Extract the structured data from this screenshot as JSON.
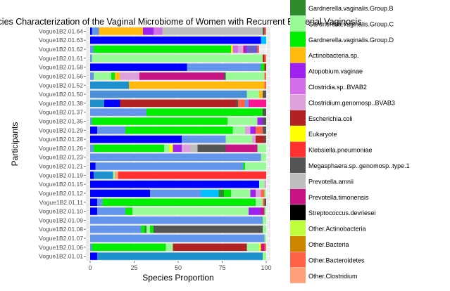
{
  "chart_data": {
    "type": "bar",
    "orientation": "horizontal",
    "stacked": true,
    "title": "cies Characterization of the Vaginal Microbiome of Women with Recurrent Bacterial Vaginosis",
    "xlabel": "Species Proportion",
    "ylabel": "Participants",
    "xlim": [
      0,
      100
    ],
    "xticks": [
      0,
      25,
      50,
      75,
      100
    ],
    "grid": true,
    "legend_position": "right",
    "categories": [
      "Vogue1B2.01.64",
      "Vogue1B2.01.63",
      "Vogue1B2.01.62",
      "Vogue1B2.01.61",
      "Vogue1B2.01.58",
      "Vogue1B2.01.56",
      "Vogue1B2.01.52",
      "Vogue1B2.01.50",
      "Vogue1B2.01.38",
      "Vogue1B2.01.37",
      "Vogue1B2.01.35",
      "Vogue1B2.01.29",
      "Vogue1B2.01.28",
      "Vogue1B2.01.26",
      "Vogue1B2.01.23",
      "Vogue1B2.01.21",
      "Vogue1B2.01.19",
      "Vogue1B2.01.15",
      "Vogue1B2.01.12",
      "Vogue1B2.01.11",
      "Vogue1B2.01.10",
      "Vogue1B2.01.09",
      "Vogue1B2.01.08",
      "Vogue1B2.01.07",
      "Vogue1B2.01.06",
      "Vogue1B2.01.01"
    ],
    "legend": [
      {
        "name": "Gardnerella.vaginalis.Group.B",
        "color": "#2e8b2e"
      },
      {
        "name": "Gardnerella.vaginalis.Group.C",
        "color": "#98fb98"
      },
      {
        "name": "Gardnerella.vaginalis.Group.D",
        "color": "#00ee00"
      },
      {
        "name": "Actinobacteria.sp.",
        "color": "#ffb90f"
      },
      {
        "name": "Atopobium.vaginae",
        "color": "#a020f0"
      },
      {
        "name": "Clostridia.sp..BVAB2",
        "color": "#d16ee8"
      },
      {
        "name": "Clostridium.genomosp..BVAB3",
        "color": "#dda0dd"
      },
      {
        "name": "Escherichia.coli",
        "color": "#b22222"
      },
      {
        "name": "Eukaryote",
        "color": "#ffff00"
      },
      {
        "name": "Klebsiella.pneumoniae",
        "color": "#ff3030"
      },
      {
        "name": "Megasphaera.sp..genomosp..type.1",
        "color": "#555555"
      },
      {
        "name": "Prevotella.amnii",
        "color": "#bebebe"
      },
      {
        "name": "Prevotella.timonensis",
        "color": "#c71585"
      },
      {
        "name": "Streptococcus.devriesei",
        "color": "#000000"
      },
      {
        "name": "Other.Actinobacteria",
        "color": "#c0ff3e"
      },
      {
        "name": "Other.Bacteria",
        "color": "#cd8500"
      },
      {
        "name": "Other.Bacteroidetes",
        "color": "#ff6347"
      },
      {
        "name": "Other.Clostridium",
        "color": "#ffa07a"
      }
    ],
    "rows": [
      {
        "label": "Vogue1B2.01.64",
        "segments": [
          {
            "color": "#0000ff",
            "value": 1
          },
          {
            "color": "#6495ed",
            "value": 4
          },
          {
            "color": "#ffb90f",
            "value": 25
          },
          {
            "color": "#a020f0",
            "value": 6
          },
          {
            "color": "#d16ee8",
            "value": 5
          },
          {
            "color": "#bebebe",
            "value": 57
          },
          {
            "color": "#555555",
            "value": 1
          },
          {
            "color": "#ff6347",
            "value": 1
          }
        ]
      },
      {
        "label": "Vogue1B2.01.63",
        "segments": [
          {
            "color": "#0000ff",
            "value": 97
          },
          {
            "color": "#00bfff",
            "value": 3
          }
        ]
      },
      {
        "label": "Vogue1B2.01.62",
        "segments": [
          {
            "color": "#6495ed",
            "value": 2
          },
          {
            "color": "#00ee00",
            "value": 78
          },
          {
            "color": "#ffff00",
            "value": 1
          },
          {
            "color": "#d16ee8",
            "value": 3
          },
          {
            "color": "#dda0dd",
            "value": 3
          },
          {
            "color": "#c71585",
            "value": 1
          },
          {
            "color": "#a020f0",
            "value": 1
          },
          {
            "color": "#6a5acd",
            "value": 6
          },
          {
            "color": "#ff6347",
            "value": 1
          }
        ]
      },
      {
        "label": "Vogue1B2.01.61",
        "segments": [
          {
            "color": "#6495ed",
            "value": 1
          },
          {
            "color": "#98fb98",
            "value": 97
          },
          {
            "color": "#b22222",
            "value": 1
          },
          {
            "color": "#ff6347",
            "value": 1
          }
        ]
      },
      {
        "label": "Vogue1B2.01.58",
        "segments": [
          {
            "color": "#0000ff",
            "value": 55
          },
          {
            "color": "#6495ed",
            "value": 42
          },
          {
            "color": "#00ee00",
            "value": 2
          },
          {
            "color": "#b22222",
            "value": 1
          }
        ]
      },
      {
        "label": "Vogue1B2.01.56",
        "segments": [
          {
            "color": "#6495ed",
            "value": 2
          },
          {
            "color": "#98fb98",
            "value": 10
          },
          {
            "color": "#00ee00",
            "value": 2
          },
          {
            "color": "#ffb90f",
            "value": 3
          },
          {
            "color": "#dda0dd",
            "value": 11
          },
          {
            "color": "#c71585",
            "value": 48
          },
          {
            "color": "#555555",
            "value": 1
          },
          {
            "color": "#98fb98",
            "value": 22
          },
          {
            "color": "#ff6347",
            "value": 1
          }
        ]
      },
      {
        "label": "Vogue1B2.01.52",
        "segments": [
          {
            "color": "#1e90cd",
            "value": 22
          },
          {
            "color": "#ffb90f",
            "value": 77
          },
          {
            "color": "#ff6347",
            "value": 1
          }
        ]
      },
      {
        "label": "Vogue1B2.01.50",
        "segments": [
          {
            "color": "#4a90d9",
            "value": 89
          },
          {
            "color": "#98fb98",
            "value": 7
          },
          {
            "color": "#ffb90f",
            "value": 2
          },
          {
            "color": "#555555",
            "value": 2
          }
        ]
      },
      {
        "label": "Vogue1B2.01.38",
        "segments": [
          {
            "color": "#1e90cd",
            "value": 8
          },
          {
            "color": "#0000ff",
            "value": 9
          },
          {
            "color": "#b22222",
            "value": 66
          },
          {
            "color": "#555555",
            "value": 1
          },
          {
            "color": "#ff6347",
            "value": 4
          },
          {
            "color": "#6495ed",
            "value": 2
          },
          {
            "color": "#ff1493",
            "value": 10
          }
        ]
      },
      {
        "label": "Vogue1B2.01.37",
        "segments": [
          {
            "color": "#6495ed",
            "value": 32
          },
          {
            "color": "#00ee00",
            "value": 66
          },
          {
            "color": "#555555",
            "value": 2
          }
        ]
      },
      {
        "label": "Vogue1B2.01.35",
        "segments": [
          {
            "color": "#6495ed",
            "value": 1
          },
          {
            "color": "#00ee00",
            "value": 77
          },
          {
            "color": "#98fb98",
            "value": 17
          },
          {
            "color": "#a020f0",
            "value": 3
          },
          {
            "color": "#555555",
            "value": 2
          }
        ]
      },
      {
        "label": "Vogue1B2.01.29",
        "segments": [
          {
            "color": "#0000ff",
            "value": 4
          },
          {
            "color": "#6495ed",
            "value": 16
          },
          {
            "color": "#00ee00",
            "value": 61
          },
          {
            "color": "#98fb98",
            "value": 7
          },
          {
            "color": "#dda0dd",
            "value": 3
          },
          {
            "color": "#a020f0",
            "value": 3
          },
          {
            "color": "#ff6347",
            "value": 4
          },
          {
            "color": "#555555",
            "value": 2
          }
        ]
      },
      {
        "label": "Vogue1B2.01.28",
        "segments": [
          {
            "color": "#0000ff",
            "value": 52
          },
          {
            "color": "#6495ed",
            "value": 25
          },
          {
            "color": "#98fb98",
            "value": 15
          },
          {
            "color": "#dda0dd",
            "value": 2
          },
          {
            "color": "#b22222",
            "value": 5
          },
          {
            "color": "#555555",
            "value": 1
          }
        ]
      },
      {
        "label": "Vogue1B2.01.26",
        "segments": [
          {
            "color": "#6495ed",
            "value": 2
          },
          {
            "color": "#00ee00",
            "value": 40
          },
          {
            "color": "#98fb98",
            "value": 3
          },
          {
            "color": "#ffff00",
            "value": 2
          },
          {
            "color": "#a020f0",
            "value": 5
          },
          {
            "color": "#dda0dd",
            "value": 5
          },
          {
            "color": "#bebebe",
            "value": 4
          },
          {
            "color": "#555555",
            "value": 16
          },
          {
            "color": "#c71585",
            "value": 18
          },
          {
            "color": "#98fb98",
            "value": 5
          }
        ]
      },
      {
        "label": "Vogue1B2.01.23",
        "segments": [
          {
            "color": "#6495ed",
            "value": 97
          },
          {
            "color": "#98fb98",
            "value": 3
          }
        ]
      },
      {
        "label": "Vogue1B2.01.21",
        "segments": [
          {
            "color": "#0000ff",
            "value": 3
          },
          {
            "color": "#6495ed",
            "value": 84
          },
          {
            "color": "#00ee00",
            "value": 1
          },
          {
            "color": "#98fb98",
            "value": 12
          }
        ]
      },
      {
        "label": "Vogue1B2.01.19",
        "segments": [
          {
            "color": "#0000ff",
            "value": 2
          },
          {
            "color": "#1e90cd",
            "value": 11
          },
          {
            "color": "#98fb98",
            "value": 1
          },
          {
            "color": "#ffa07a",
            "value": 2
          },
          {
            "color": "#ff3030",
            "value": 84
          }
        ]
      },
      {
        "label": "Vogue1B2.01.15",
        "segments": [
          {
            "color": "#0000ff",
            "value": 96
          },
          {
            "color": "#98fb98",
            "value": 3
          },
          {
            "color": "#dda0dd",
            "value": 1
          }
        ]
      },
      {
        "label": "Vogue1B2.01.12",
        "segments": [
          {
            "color": "#0000ff",
            "value": 34
          },
          {
            "color": "#6495ed",
            "value": 29
          },
          {
            "color": "#00bfff",
            "value": 10
          },
          {
            "color": "#2e8b2e",
            "value": 3
          },
          {
            "color": "#00ee00",
            "value": 4
          },
          {
            "color": "#98fb98",
            "value": 11
          },
          {
            "color": "#a020f0",
            "value": 3
          },
          {
            "color": "#dda0dd",
            "value": 3
          },
          {
            "color": "#ff6347",
            "value": 2
          },
          {
            "color": "#98fb98",
            "value": 1
          }
        ]
      },
      {
        "label": "Vogue1B2.01.11",
        "segments": [
          {
            "color": "#0000ff",
            "value": 4
          },
          {
            "color": "#6495ed",
            "value": 3
          },
          {
            "color": "#00ee00",
            "value": 87
          },
          {
            "color": "#98fb98",
            "value": 4
          },
          {
            "color": "#ff6347",
            "value": 1
          },
          {
            "color": "#555555",
            "value": 1
          }
        ]
      },
      {
        "label": "Vogue1B2.01.10",
        "segments": [
          {
            "color": "#0000ff",
            "value": 4
          },
          {
            "color": "#6495ed",
            "value": 16
          },
          {
            "color": "#00ee00",
            "value": 4
          },
          {
            "color": "#98fb98",
            "value": 66
          },
          {
            "color": "#a020f0",
            "value": 7
          },
          {
            "color": "#c71585",
            "value": 2
          },
          {
            "color": "#98fb98",
            "value": 1
          }
        ]
      },
      {
        "label": "Vogue1B2.01.09",
        "segments": [
          {
            "color": "#6495ed",
            "value": 98
          },
          {
            "color": "#98fb98",
            "value": 2
          }
        ]
      },
      {
        "label": "Vogue1B2.01.08",
        "segments": [
          {
            "color": "#6495ed",
            "value": 29
          },
          {
            "color": "#00ee00",
            "value": 2
          },
          {
            "color": "#2e8b2e",
            "value": 1
          },
          {
            "color": "#98fb98",
            "value": 2
          },
          {
            "color": "#00ee00",
            "value": 2
          },
          {
            "color": "#555555",
            "value": 62
          },
          {
            "color": "#98fb98",
            "value": 2
          }
        ]
      },
      {
        "label": "Vogue1B2.01.07",
        "segments": [
          {
            "color": "#6495ed",
            "value": 99
          },
          {
            "color": "#98fb98",
            "value": 1
          }
        ]
      },
      {
        "label": "Vogue1B2.01.06",
        "segments": [
          {
            "color": "#6495ed",
            "value": 1
          },
          {
            "color": "#00ee00",
            "value": 42
          },
          {
            "color": "#98fb98",
            "value": 4
          },
          {
            "color": "#b22222",
            "value": 42
          },
          {
            "color": "#98fb98",
            "value": 7
          },
          {
            "color": "#ffff00",
            "value": 1
          },
          {
            "color": "#c71585",
            "value": 2
          },
          {
            "color": "#ff6347",
            "value": 1
          }
        ]
      },
      {
        "label": "Vogue1B2.01.01",
        "segments": [
          {
            "color": "#0000ff",
            "value": 4
          },
          {
            "color": "#1e90cd",
            "value": 94
          },
          {
            "color": "#98fb98",
            "value": 2
          }
        ]
      }
    ]
  }
}
